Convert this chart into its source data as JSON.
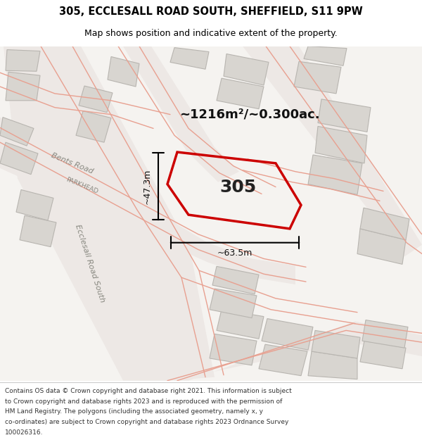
{
  "title_line1": "305, ECCLESALL ROAD SOUTH, SHEFFIELD, S11 9PW",
  "title_line2": "Map shows position and indicative extent of the property.",
  "area_text": "~1216m²/~0.300ac.",
  "property_number": "305",
  "dim_width": "~63.5m",
  "dim_height": "~47.3m",
  "road_label_bents": "Bents Road",
  "road_label_parkhead": "PARKHEAD",
  "road_label_ecclesall": "Ecclesall Road South",
  "footer_lines": [
    "Contains OS data © Crown copyright and database right 2021. This information is subject",
    "to Crown copyright and database rights 2023 and is reproduced with the permission of",
    "HM Land Registry. The polygons (including the associated geometry, namely x, y",
    "co-ordinates) are subject to Crown copyright and database rights 2023 Ordnance Survey",
    "100026316."
  ],
  "map_bg": "#f5f3f0",
  "building_fill": "#d8d5d0",
  "building_edge": "#b8b5b0",
  "road_fill": "#ede8e5",
  "road_line_color": "#e8a090",
  "red_polygon": "#cc0000",
  "white_bg": "#ffffff"
}
